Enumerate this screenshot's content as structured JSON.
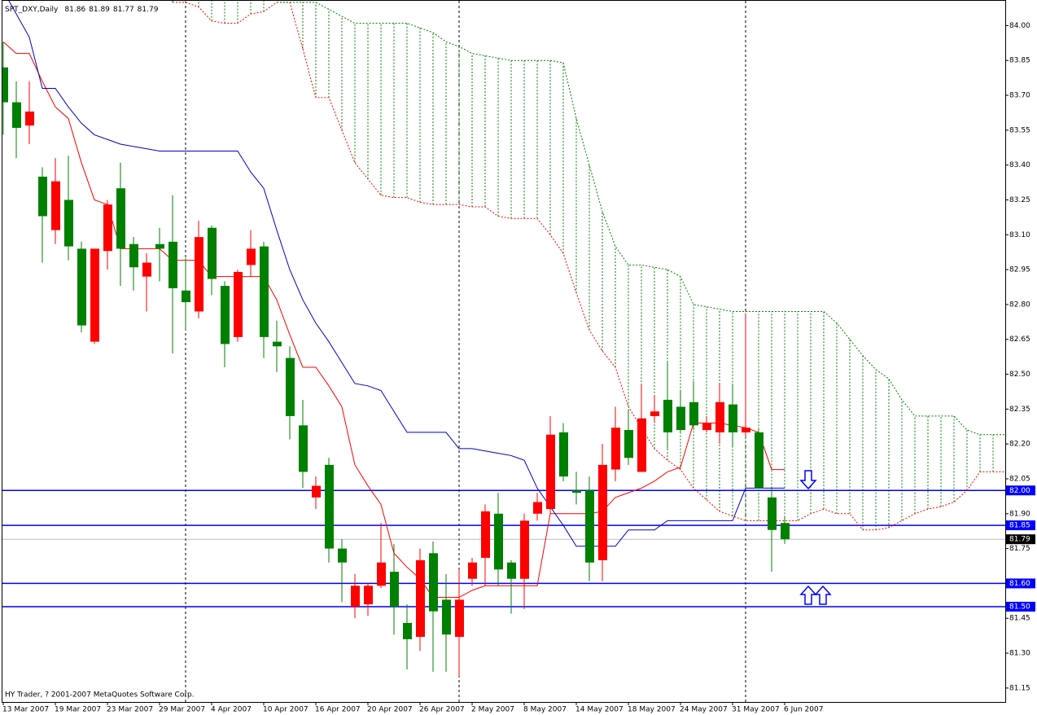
{
  "chart_data": {
    "type": "candlestick",
    "title": "SPT_DXY,Daily",
    "copyright": "HY Trader, ? 2001-2007 MetaQuotes Software Corp.",
    "categories": [
      "13 Mar 2007",
      null,
      null,
      null,
      "19 Mar 2007",
      null,
      null,
      null,
      "23 Mar 2007",
      null,
      null,
      null,
      "29 Mar 2007",
      null,
      null,
      null,
      "4 Apr 2007",
      null,
      null,
      null,
      "10 Apr 2007",
      null,
      null,
      null,
      "16 Apr 2007",
      null,
      null,
      null,
      "20 Apr 2007",
      null,
      null,
      null,
      "26 Apr 2007",
      null,
      null,
      null,
      "2 May 2007",
      null,
      null,
      null,
      "8 May 2007",
      null,
      null,
      null,
      "14 May 2007",
      null,
      null,
      null,
      "18 May 2007",
      null,
      null,
      null,
      "24 May 2007",
      null,
      null,
      null,
      "31 May 2007",
      null,
      null,
      null,
      "6 Jun 2007"
    ],
    "open": [
      83.82,
      83.67,
      83.57,
      83.35,
      83.12,
      83.25,
      83.04,
      82.64,
      83.03,
      83.3,
      83.06,
      82.92,
      83.06,
      83.07,
      82.86,
      82.77,
      83.13,
      82.88,
      82.66,
      82.97,
      83.05,
      82.64,
      82.57,
      82.28,
      81.97,
      82.11,
      81.75,
      81.5,
      81.51,
      81.59,
      81.65,
      81.43,
      81.37,
      81.73,
      81.53,
      81.37,
      81.62,
      81.71,
      81.9,
      81.69,
      81.62,
      81.9,
      81.92,
      82.25,
      82.0,
      82.0,
      81.7,
      82.09,
      82.26,
      82.08,
      82.32,
      82.39,
      82.36,
      82.38,
      82.26,
      82.25,
      82.37,
      82.25,
      82.25,
      81.97,
      81.86
    ],
    "high": [
      83.93,
      83.76,
      83.76,
      83.39,
      83.43,
      83.44,
      83.07,
      83.04,
      83.25,
      83.41,
      83.09,
      83.02,
      83.13,
      83.27,
      83.0,
      83.16,
      83.14,
      82.9,
      82.95,
      83.12,
      83.07,
      82.73,
      82.62,
      82.39,
      82.06,
      82.14,
      81.79,
      81.64,
      81.6,
      81.86,
      81.77,
      81.51,
      81.75,
      81.78,
      81.64,
      81.66,
      81.71,
      81.94,
      81.99,
      81.7,
      81.9,
      81.99,
      82.32,
      82.29,
      82.08,
      82.06,
      82.2,
      82.36,
      82.35,
      82.46,
      82.41,
      82.55,
      82.43,
      82.47,
      82.32,
      82.46,
      82.46,
      82.76,
      82.27,
      82.01,
      81.89
    ],
    "low": [
      83.53,
      83.43,
      83.49,
      82.98,
      83.06,
      82.99,
      82.68,
      82.63,
      82.95,
      82.88,
      82.86,
      82.77,
      82.9,
      82.59,
      82.69,
      82.74,
      82.84,
      82.53,
      82.64,
      82.92,
      82.57,
      82.51,
      82.22,
      82.01,
      81.92,
      81.69,
      81.52,
      81.45,
      81.46,
      81.58,
      81.38,
      81.23,
      81.31,
      81.22,
      81.22,
      81.2,
      81.59,
      81.59,
      81.59,
      81.47,
      81.49,
      81.87,
      81.9,
      82.04,
      81.94,
      81.61,
      81.61,
      82.04,
      82.11,
      82.08,
      82.29,
      82.18,
      82.25,
      82.26,
      82.25,
      82.2,
      82.19,
      82.23,
      82.01,
      81.65,
      81.77
    ],
    "close": [
      83.67,
      83.56,
      83.63,
      83.18,
      83.33,
      83.05,
      82.71,
      83.04,
      83.23,
      83.04,
      82.96,
      82.98,
      83.04,
      82.87,
      82.81,
      83.09,
      82.91,
      82.63,
      82.94,
      83.04,
      82.66,
      82.62,
      82.32,
      82.08,
      82.02,
      81.75,
      81.69,
      81.59,
      81.59,
      81.69,
      81.5,
      81.36,
      81.7,
      81.48,
      81.38,
      81.53,
      81.69,
      81.91,
      81.66,
      81.62,
      81.87,
      81.95,
      82.24,
      82.06,
      81.99,
      81.69,
      82.11,
      82.27,
      82.14,
      82.31,
      82.34,
      82.25,
      82.26,
      82.28,
      82.29,
      82.38,
      82.25,
      82.27,
      82.01,
      81.83,
      81.79
    ],
    "up_color": "#ff0000",
    "down_color": "#008000",
    "indicators": [
      {
        "color": "#ff0000",
        "style": "solid",
        "values": [
          83.93,
          83.88,
          83.88,
          83.76,
          83.65,
          83.6,
          83.41,
          83.25,
          83.23,
          83.04,
          83.04,
          83.04,
          83.04,
          82.99,
          82.99,
          82.99,
          82.92,
          82.92,
          82.92,
          82.92,
          82.92,
          82.82,
          82.67,
          82.53,
          82.53,
          82.45,
          82.36,
          82.11,
          82.02,
          81.94,
          81.73,
          81.67,
          81.62,
          81.54,
          81.54,
          81.54,
          81.57,
          81.59,
          81.59,
          81.59,
          81.59,
          81.59,
          81.9,
          81.9,
          81.9,
          81.9,
          81.91,
          81.97,
          81.99,
          82.01,
          82.04,
          82.08,
          82.1,
          82.29,
          82.29,
          82.29,
          82.28,
          82.27,
          82.25,
          82.09,
          82.09
        ]
      },
      {
        "color": "#0000cc",
        "style": "solid",
        "values": [
          84.15,
          84.05,
          83.95,
          83.73,
          83.73,
          83.65,
          83.58,
          83.53,
          83.51,
          83.49,
          83.48,
          83.47,
          83.46,
          83.46,
          83.46,
          83.46,
          83.46,
          83.46,
          83.46,
          83.37,
          83.3,
          83.12,
          82.95,
          82.82,
          82.72,
          82.64,
          82.55,
          82.46,
          82.45,
          82.43,
          82.34,
          82.25,
          82.25,
          82.25,
          82.25,
          82.18,
          82.18,
          82.17,
          82.16,
          82.15,
          82.13,
          82.01,
          81.93,
          81.85,
          81.76,
          81.76,
          81.76,
          81.76,
          81.83,
          81.83,
          81.83,
          81.87,
          81.87,
          81.87,
          81.87,
          81.87,
          81.87,
          82.01,
          82.01,
          82.01,
          82.01
        ]
      },
      {
        "color": "#ff0000",
        "style": "dashed",
        "values": [
          null,
          null,
          null,
          null,
          null,
          null,
          null,
          null,
          null,
          null,
          null,
          null,
          null,
          84.1,
          84.1,
          84.08,
          84.02,
          84.01,
          84.01,
          84.05,
          84.06,
          84.1,
          84.1,
          83.9,
          83.69,
          83.69,
          83.55,
          83.41,
          83.34,
          83.27,
          83.26,
          83.26,
          83.24,
          83.23,
          83.23,
          83.23,
          83.22,
          83.22,
          83.18,
          83.17,
          83.17,
          83.17,
          83.1,
          83.02,
          82.85,
          82.69,
          82.6,
          82.53,
          82.36,
          82.27,
          82.18,
          82.13,
          82.09,
          82.01,
          81.96,
          81.91,
          81.89,
          81.87,
          81.87,
          81.87,
          81.87,
          81.87,
          81.9,
          81.92,
          81.9,
          81.9,
          81.83,
          81.83,
          81.84,
          81.87,
          81.9,
          81.92,
          81.93,
          81.95,
          82.0,
          82.08,
          82.08,
          82.08
        ]
      },
      {
        "color": "#008000",
        "style": "dashed",
        "values": [
          null,
          null,
          null,
          null,
          null,
          null,
          null,
          null,
          null,
          null,
          null,
          null,
          null,
          null,
          null,
          null,
          null,
          null,
          null,
          null,
          null,
          84.1,
          84.1,
          84.1,
          84.1,
          84.07,
          84.04,
          84.01,
          84.01,
          84.01,
          84.01,
          84.01,
          83.99,
          83.97,
          83.93,
          83.91,
          83.88,
          83.87,
          83.86,
          83.85,
          83.85,
          83.85,
          83.85,
          83.84,
          83.6,
          83.4,
          83.2,
          83.05,
          82.97,
          82.97,
          82.96,
          82.95,
          82.92,
          82.8,
          82.79,
          82.78,
          82.77,
          82.77,
          82.77,
          82.77,
          82.77,
          82.77,
          82.77,
          82.77,
          82.72,
          82.65,
          82.58,
          82.52,
          82.48,
          82.39,
          82.32,
          82.32,
          82.32,
          82.32,
          82.26,
          82.24,
          82.24,
          82.24
        ]
      }
    ],
    "cloud_color": "#008000",
    "levels": [
      {
        "value": 82.0,
        "label": "82.00"
      },
      {
        "value": 81.85,
        "label": "81.85"
      },
      {
        "value": 81.6,
        "label": "81.60"
      },
      {
        "value": 81.5,
        "label": "81.50"
      }
    ],
    "level_color": "#0000ff",
    "ylim": [
      81.09,
      84.11
    ],
    "yticks": [
      {
        "value": 84.0,
        "label": "84.00"
      },
      {
        "value": 83.85,
        "label": "83.85"
      },
      {
        "value": 83.7,
        "label": "83.70"
      },
      {
        "value": 83.55,
        "label": "83.55"
      },
      {
        "value": 83.4,
        "label": "83.40"
      },
      {
        "value": 83.25,
        "label": "83.25"
      },
      {
        "value": 83.1,
        "label": "83.10"
      },
      {
        "value": 82.95,
        "label": "82.95"
      },
      {
        "value": 82.8,
        "label": "82.80"
      },
      {
        "value": 82.65,
        "label": "82.65"
      },
      {
        "value": 82.5,
        "label": "82.50"
      },
      {
        "value": 82.35,
        "label": "82.35"
      },
      {
        "value": 82.2,
        "label": "82.20"
      },
      {
        "value": 82.05,
        "label": "82.05"
      },
      {
        "value": 81.9,
        "label": "81.90"
      },
      {
        "value": 81.75,
        "label": "81.75"
      },
      {
        "value": 81.45,
        "label": "81.45"
      },
      {
        "value": 81.3,
        "label": "81.30"
      },
      {
        "value": 81.15,
        "label": "81.15"
      }
    ]
  }
}
